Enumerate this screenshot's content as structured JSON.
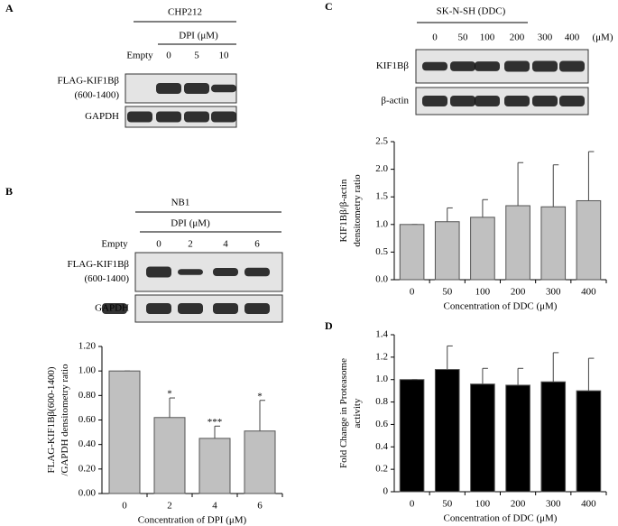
{
  "blots": [
    {
      "panel": "A",
      "cell_line": "CHP212",
      "treatment": "DPI (μM)",
      "lanes": [
        "Empty",
        "0",
        "5",
        "10"
      ],
      "rows": [
        [
          "FLAG-KIF1Bβ",
          "(600-1400)"
        ],
        [
          "GAPDH"
        ]
      ]
    },
    {
      "panel": "B",
      "cell_line": "NB1",
      "treatment": "DPI (μM)",
      "lanes": [
        "Empty",
        "0",
        "2",
        "4",
        "6"
      ],
      "rows": [
        [
          "FLAG-KIF1Bβ",
          "(600-1400)"
        ],
        [
          "GAPDH"
        ]
      ]
    },
    {
      "panel": "C",
      "cell_line": "SK-N-SH (DDC)",
      "lanes": [
        "0",
        "50",
        "100",
        "200",
        "300",
        "400",
        "(μM)"
      ],
      "rows": [
        [
          "KIF1Bβ"
        ],
        [
          "β-actin"
        ]
      ]
    }
  ],
  "panel_d": "D",
  "chart_data": [
    {
      "type": "bar",
      "ylabel_lines": [
        "FLAG-KIF1Bβ(600-1400)",
        "/GAPDH densitometry ratio"
      ],
      "xlabel": "Concentration of DPI (μM)",
      "categories": [
        "0",
        "2",
        "4",
        "6"
      ],
      "values": [
        1.0,
        0.62,
        0.45,
        0.51
      ],
      "errors": [
        0,
        0.16,
        0.1,
        0.25
      ],
      "significance": [
        null,
        "*",
        "***",
        "*"
      ],
      "color": "#c0c0c0",
      "ylim": [
        0,
        1.2
      ],
      "yticks": [
        {
          "value": 0,
          "label": "0.00"
        },
        {
          "value": 0.2,
          "label": "0.20"
        },
        {
          "value": 0.4,
          "label": "0.40"
        },
        {
          "value": 0.6,
          "label": "0.60"
        },
        {
          "value": 0.8,
          "label": "0.80"
        },
        {
          "value": 1.0,
          "label": "1.00"
        },
        {
          "value": 1.2,
          "label": "1.20"
        }
      ]
    },
    {
      "type": "bar",
      "ylabel_lines": [
        "KIF1Bβ/β-actin",
        "densitometry ratio"
      ],
      "xlabel": "Concentration of DDC (μM)",
      "categories": [
        "0",
        "50",
        "100",
        "200",
        "300",
        "400"
      ],
      "values": [
        1.0,
        1.05,
        1.13,
        1.34,
        1.32,
        1.43
      ],
      "errors": [
        0,
        0.25,
        0.32,
        0.78,
        0.76,
        0.89
      ],
      "color": "#c0c0c0",
      "ylim": [
        0,
        2.5
      ],
      "yticks": [
        {
          "value": 0,
          "label": "0.0"
        },
        0.5,
        {
          "value": 1.0,
          "label": "1.0"
        },
        1.5,
        {
          "value": 2.0,
          "label": "2.0"
        },
        2.5
      ]
    },
    {
      "type": "bar",
      "ylabel_lines": [
        "Fold Change in Proteasome",
        "activity"
      ],
      "xlabel": "Concentration of DDC (μM)",
      "categories": [
        "0",
        "50",
        "100",
        "200",
        "300",
        "400"
      ],
      "values": [
        1.0,
        1.09,
        0.96,
        0.95,
        0.98,
        0.9
      ],
      "errors": [
        0,
        0.21,
        0.14,
        0.15,
        0.26,
        0.29
      ],
      "color": "#000000",
      "ylim": [
        0,
        1.4
      ],
      "yticks": [
        0,
        0.2,
        0.4,
        0.6,
        0.8,
        {
          "value": 1.0,
          "label": "1.0"
        },
        1.2,
        1.4
      ]
    }
  ]
}
